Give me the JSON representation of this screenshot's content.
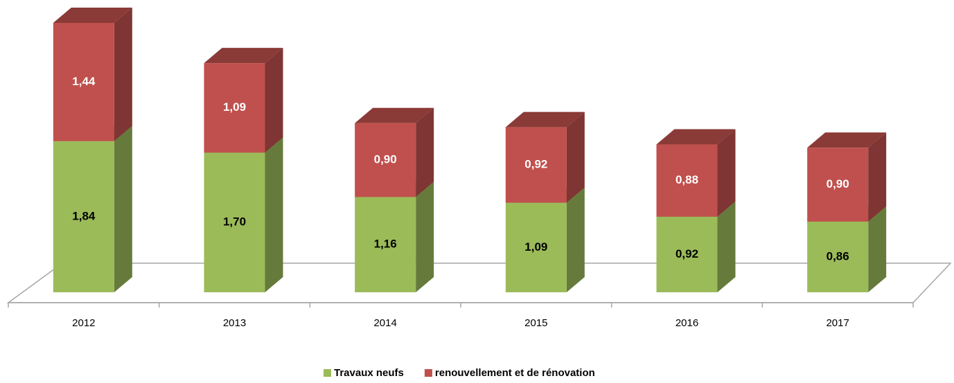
{
  "chart_data": {
    "type": "bar3d_stacked",
    "categories": [
      "2012",
      "2013",
      "2014",
      "2015",
      "2016",
      "2017"
    ],
    "series": [
      {
        "name": "Travaux neufs",
        "color": "#9bbb59",
        "values": [
          1.84,
          1.7,
          1.16,
          1.09,
          0.92,
          0.86
        ],
        "value_labels": [
          "1,84",
          "1,70",
          "1,16",
          "1,09",
          "0,92",
          "0,86"
        ]
      },
      {
        "name": "renouvellement et de rénovation",
        "color": "#c0504d",
        "values": [
          1.44,
          1.09,
          0.9,
          0.92,
          0.88,
          0.9
        ],
        "value_labels": [
          "1,44",
          "1,09",
          "0,90",
          "0,92",
          "0,88",
          "0,90"
        ]
      }
    ]
  }
}
